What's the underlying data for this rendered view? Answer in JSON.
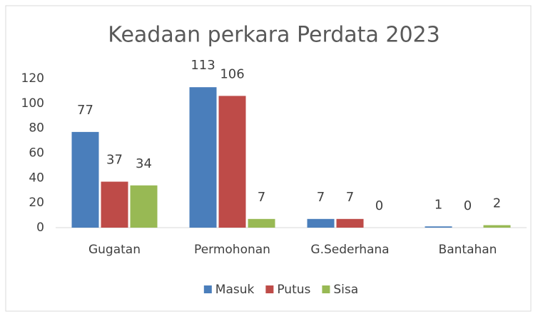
{
  "chart_data": {
    "type": "bar",
    "title": "Keadaan perkara Perdata 2023",
    "categories": [
      "Gugatan",
      "Permohonan",
      "G.Sederhana",
      "Bantahan"
    ],
    "series": [
      {
        "name": "Masuk",
        "color": "#4a7ebb",
        "values": [
          77,
          113,
          7,
          1
        ]
      },
      {
        "name": "Putus",
        "color": "#be4b48",
        "values": [
          37,
          106,
          7,
          0
        ]
      },
      {
        "name": "Sisa",
        "color": "#98b954",
        "values": [
          34,
          7,
          0,
          2
        ]
      }
    ],
    "ylim": [
      0,
      120
    ],
    "yticks": [
      0,
      20,
      40,
      60,
      80,
      100,
      120
    ],
    "grid": false,
    "legend": "bottom"
  }
}
